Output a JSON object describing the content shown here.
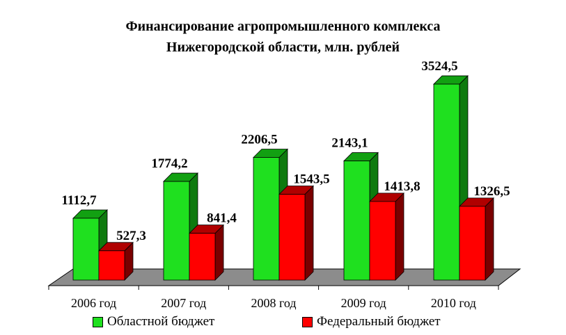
{
  "title_line1": "Финансирование агропромышленного комплекса",
  "title_line2": "Нижегородской области, млн. рублей",
  "chart_data": {
    "type": "bar",
    "title": "Финансирование агропромышленного комплекса Нижегородской области, млн. рублей",
    "categories": [
      "2006 год",
      "2007 год",
      "2008 год",
      "2009 год",
      "2010 год"
    ],
    "series": [
      {
        "name": "Областной бюджет",
        "values": [
          1112.7,
          1774.2,
          2206.5,
          2143.1,
          3524.5
        ],
        "labels": [
          "1112,7",
          "1774,2",
          "2206,5",
          "2143,1",
          "3524,5"
        ],
        "color": "#1FE01F"
      },
      {
        "name": "Федеральный бюджет",
        "values": [
          527.3,
          841.4,
          1543.5,
          1413.8,
          1326.5
        ],
        "labels": [
          "527,3",
          "841,4",
          "1543,5",
          "1413,8",
          "1326,5"
        ],
        "color": "#FF0000"
      }
    ],
    "ylim": [
      0,
      3600
    ],
    "grid": false,
    "legend_position": "bottom",
    "three_d": true,
    "floor_color": "#8C8C8C"
  }
}
